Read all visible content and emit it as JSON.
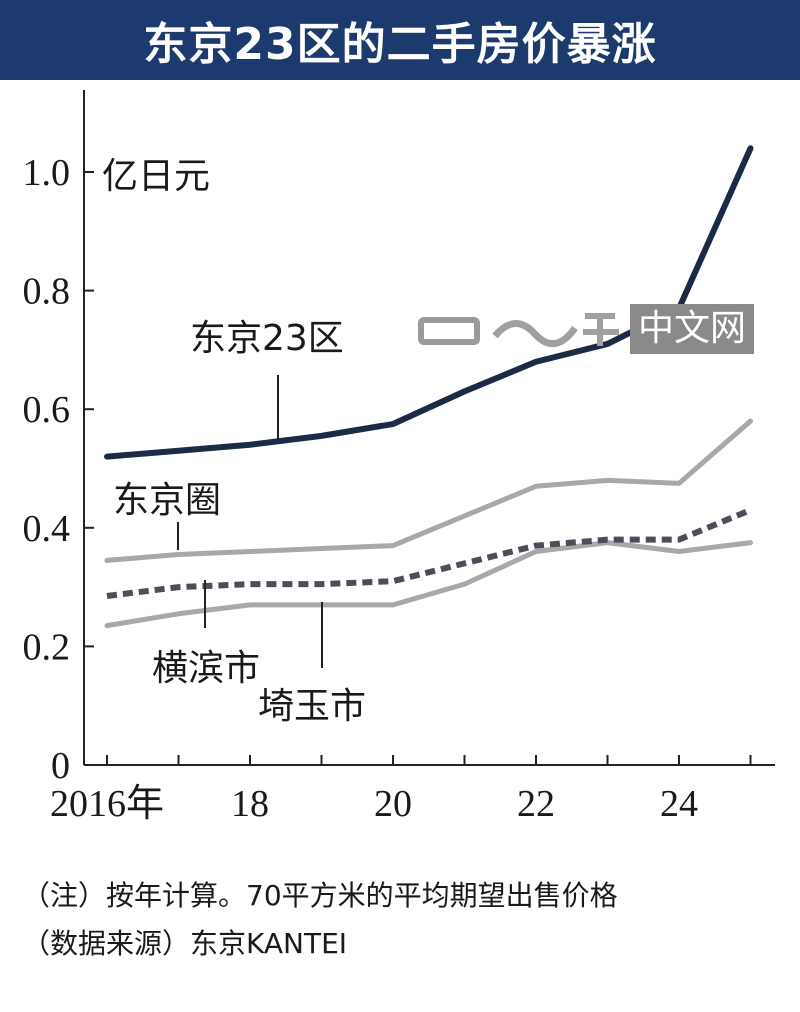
{
  "title": "东京23区的二手房价暴涨",
  "chart_data": {
    "type": "line",
    "unit_label": "亿日元",
    "x": [
      2016,
      2017,
      2018,
      2019,
      2020,
      2021,
      2022,
      2023,
      2024,
      2025
    ],
    "x_tick_labels": [
      {
        "x": 2016,
        "label": "2016年"
      },
      {
        "x": 2018,
        "label": "18"
      },
      {
        "x": 2020,
        "label": "20"
      },
      {
        "x": 2022,
        "label": "22"
      },
      {
        "x": 2024,
        "label": "24"
      }
    ],
    "y_ticks": [
      {
        "y": 0,
        "label": "0"
      },
      {
        "y": 0.2,
        "label": "0.2"
      },
      {
        "y": 0.4,
        "label": "0.4"
      },
      {
        "y": 0.6,
        "label": "0.6"
      },
      {
        "y": 0.8,
        "label": "0.8"
      },
      {
        "y": 1.0,
        "label": "1.0"
      }
    ],
    "xlim": [
      2016,
      2025
    ],
    "ylim": [
      0,
      1.1
    ],
    "series": [
      {
        "name": "东京23区",
        "color": "#1c2b45",
        "style": "solid-thick",
        "values": [
          0.52,
          0.53,
          0.54,
          0.555,
          0.575,
          0.63,
          0.68,
          0.71,
          0.77,
          1.04
        ]
      },
      {
        "name": "东京圈",
        "color": "#a8a8a8",
        "style": "solid",
        "values": [
          0.345,
          0.355,
          0.36,
          0.365,
          0.37,
          0.42,
          0.47,
          0.48,
          0.475,
          0.58
        ]
      },
      {
        "name": "横滨市",
        "color": "#4a4e58",
        "style": "dashed",
        "values": [
          0.285,
          0.3,
          0.305,
          0.305,
          0.31,
          0.34,
          0.37,
          0.38,
          0.38,
          0.43
        ]
      },
      {
        "name": "埼玉市",
        "color": "#a8a8a8",
        "style": "solid",
        "values": [
          0.235,
          0.255,
          0.27,
          0.27,
          0.27,
          0.305,
          0.36,
          0.375,
          0.36,
          0.375
        ]
      }
    ],
    "notes": "（注）按年计算。70平方米的平均期望出售价格",
    "source": "（数据来源）东京KANTEI"
  },
  "watermark": {
    "text": "中文网",
    "logo_name": "nikkei-logo"
  }
}
